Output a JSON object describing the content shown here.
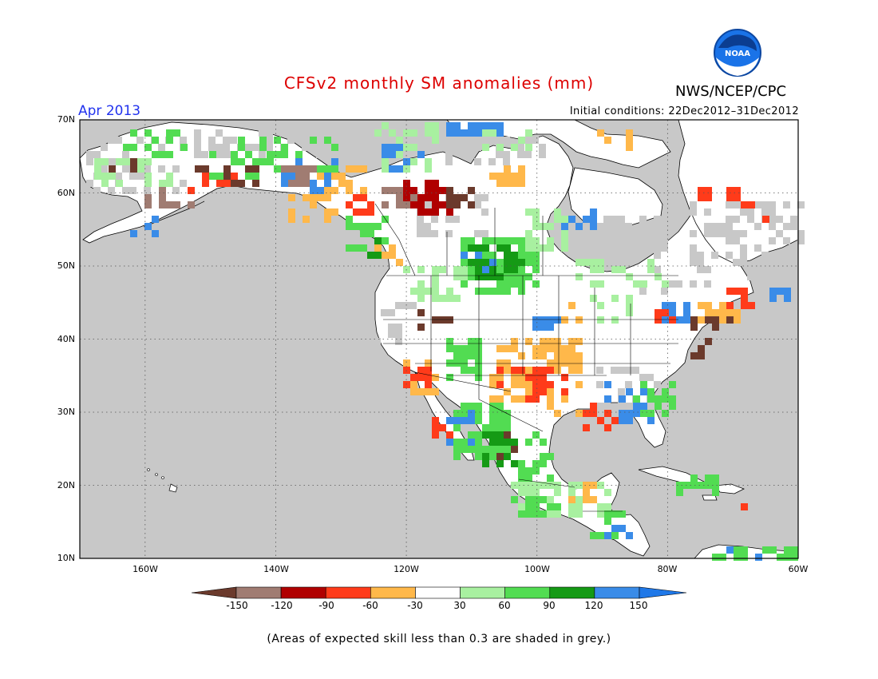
{
  "header": {
    "title": "CFSv2 monthly SM anomalies (mm)",
    "org": "NWS/NCEP/CPC",
    "logo_text": "NOAA",
    "month": "Apr 2013",
    "initial_conditions": "Initial conditions: 22Dec2012–31Dec2012"
  },
  "map": {
    "lat_labels": [
      "70N",
      "60N",
      "50N",
      "40N",
      "30N",
      "20N",
      "10N"
    ],
    "lon_labels": [
      "160W",
      "140W",
      "120W",
      "100W",
      "80W",
      "60W"
    ],
    "lat_range": [
      10,
      70
    ],
    "lon_range": [
      -170,
      -60
    ],
    "lat_values": [
      70,
      60,
      50,
      40,
      30,
      20,
      10
    ],
    "lon_values": [
      -160,
      -140,
      -120,
      -100,
      -80,
      -60
    ],
    "colors": {
      "ocean": "#c8c8c8",
      "land": "#ffffff",
      "coast": "#000000",
      "grid": "#555555"
    }
  },
  "colorbar": {
    "labels": [
      "-150",
      "-120",
      "-90",
      "-60",
      "-30",
      "30",
      "60",
      "90",
      "120",
      "150"
    ],
    "colors": [
      "#6b3a2c",
      "#a07c72",
      "#b00000",
      "#ff3b1a",
      "#ffb84a",
      "#ffffff",
      "#a8f0a0",
      "#52dc52",
      "#159a15",
      "#3a8ce8",
      "#1f78e8"
    ]
  },
  "footnote": "(Areas of expected skill less than 0.3 are shaded in grey.)"
}
